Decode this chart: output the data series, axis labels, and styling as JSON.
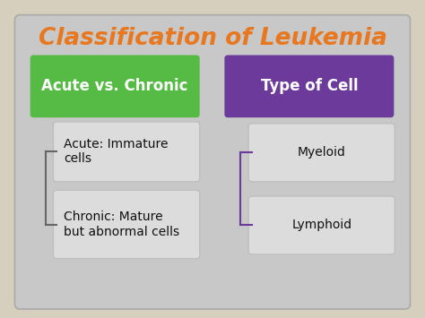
{
  "title": "Classification of Leukemia",
  "title_color": "#E87820",
  "title_fontsize": 19,
  "outer_bg": "#D6CFBE",
  "slide_bg": "#C8C8C8",
  "slide_edge": "#AAAAAA",
  "left_header": "Acute vs. Chronic",
  "left_header_bg": "#55BB44",
  "left_header_color": "#FFFFFF",
  "right_header": "Type of Cell",
  "right_header_bg": "#6B3A9A",
  "right_header_color": "#FFFFFF",
  "left_items": [
    "Acute: Immature\ncells",
    "Chronic: Mature\nbut abnormal cells"
  ],
  "right_items": [
    "Myeloid",
    "Lymphoid"
  ],
  "item_bg": "#DCDCDC",
  "item_edge": "#BBBBBB",
  "item_text_color": "#111111",
  "header_fontsize": 12,
  "item_fontsize": 10,
  "line_color_left": "#666666",
  "line_color_right": "#6B3A9A"
}
